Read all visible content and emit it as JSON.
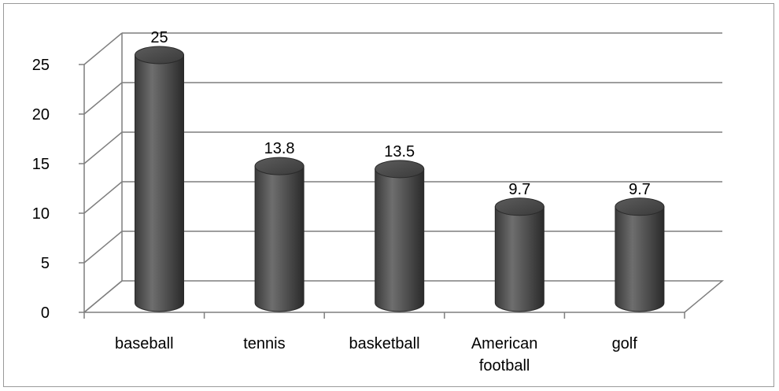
{
  "chart_data": {
    "type": "bar",
    "style": "3d-cylinder",
    "title": "",
    "xlabel": "",
    "ylabel": "",
    "categories": [
      [
        "baseball"
      ],
      [
        "tennis"
      ],
      [
        "basketball"
      ],
      [
        "American",
        "football"
      ],
      [
        "golf"
      ]
    ],
    "values": [
      25,
      13.8,
      13.5,
      9.7,
      9.7
    ],
    "data_labels": [
      "25",
      "13.8",
      "13.5",
      "9.7",
      "9.7"
    ],
    "ylim": [
      0,
      25
    ],
    "yticks": [
      "0",
      "5",
      "10",
      "15",
      "20",
      "25"
    ],
    "grid": true,
    "legend": "none",
    "colors": {
      "bar": "#5a5a5a",
      "bar_dark": "#2e2e2e",
      "bar_light": "#8a8a8a",
      "grid": "#7f7f7f",
      "axis": "#7f7f7f",
      "frame": "#9a9a9a"
    }
  }
}
